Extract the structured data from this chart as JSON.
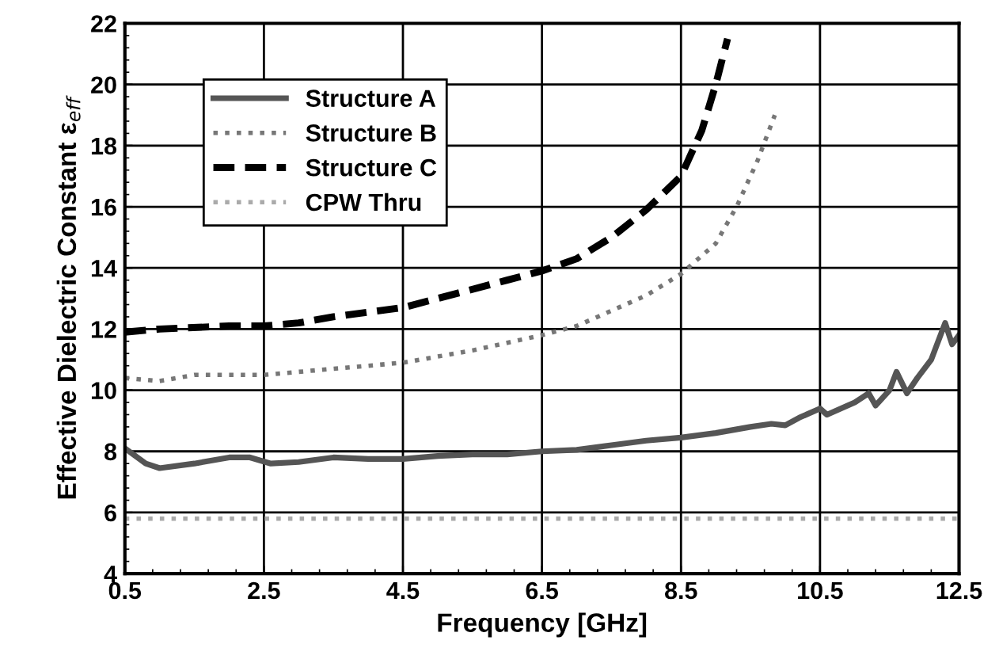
{
  "chart_data": {
    "type": "line",
    "xlabel": "Frequency [GHz]",
    "ylabel": "Effective Dielectric Constant ε$_{eff}$",
    "xlim": [
      0.5,
      12.5
    ],
    "xticks": [
      0.5,
      2.5,
      4.5,
      6.5,
      8.5,
      10.5,
      12.5
    ],
    "ylim": [
      4,
      22
    ],
    "yticks": [
      4,
      6,
      8,
      10,
      12,
      14,
      16,
      18,
      20,
      22
    ],
    "grid": true,
    "legend": "top left",
    "series": [
      {
        "name": "Structure A",
        "color": "#555555",
        "line_style": "solid",
        "x": [
          0.5,
          0.8,
          1.0,
          1.5,
          2.0,
          2.3,
          2.6,
          3.0,
          3.5,
          4.0,
          4.5,
          5.0,
          5.5,
          6.0,
          6.5,
          7.0,
          7.5,
          8.0,
          8.5,
          9.0,
          9.5,
          9.8,
          10.0,
          10.2,
          10.5,
          10.6,
          11.0,
          11.2,
          11.3,
          11.5,
          11.6,
          11.75,
          11.9,
          12.1,
          12.3,
          12.4,
          12.5
        ],
        "values": [
          8.1,
          7.6,
          7.45,
          7.6,
          7.8,
          7.8,
          7.6,
          7.65,
          7.8,
          7.75,
          7.75,
          7.85,
          7.9,
          7.9,
          8.0,
          8.05,
          8.2,
          8.35,
          8.45,
          8.6,
          8.8,
          8.9,
          8.85,
          9.1,
          9.4,
          9.2,
          9.6,
          9.9,
          9.5,
          10.0,
          10.6,
          9.9,
          10.4,
          11.0,
          12.2,
          11.5,
          11.8
        ]
      },
      {
        "name": "Structure B",
        "color": "#777777",
        "line_style": "dotted",
        "x": [
          0.5,
          1.0,
          1.5,
          2.5,
          3.5,
          4.5,
          5.5,
          6.5,
          7.0,
          7.5,
          8.0,
          8.5,
          9.0,
          9.3,
          9.6,
          9.85
        ],
        "values": [
          10.4,
          10.3,
          10.5,
          10.5,
          10.7,
          10.9,
          11.3,
          11.8,
          12.1,
          12.6,
          13.1,
          13.8,
          14.8,
          16.0,
          17.5,
          19.0
        ]
      },
      {
        "name": "Structure C",
        "color": "#000000",
        "line_style": "dashed",
        "x": [
          0.5,
          1.0,
          2.0,
          2.5,
          3.0,
          3.5,
          4.5,
          5.0,
          5.5,
          6.0,
          6.5,
          7.0,
          7.5,
          8.0,
          8.5,
          8.8,
          9.0,
          9.17
        ],
        "values": [
          11.9,
          12.0,
          12.1,
          12.1,
          12.2,
          12.4,
          12.7,
          13.0,
          13.3,
          13.6,
          13.9,
          14.3,
          15.0,
          15.9,
          17.0,
          18.5,
          20.0,
          21.5
        ]
      },
      {
        "name": "CPW Thru",
        "color": "#aaaaaa",
        "line_style": "dotted",
        "x": [
          0.5,
          12.5
        ],
        "values": [
          5.8,
          5.8
        ]
      }
    ]
  }
}
